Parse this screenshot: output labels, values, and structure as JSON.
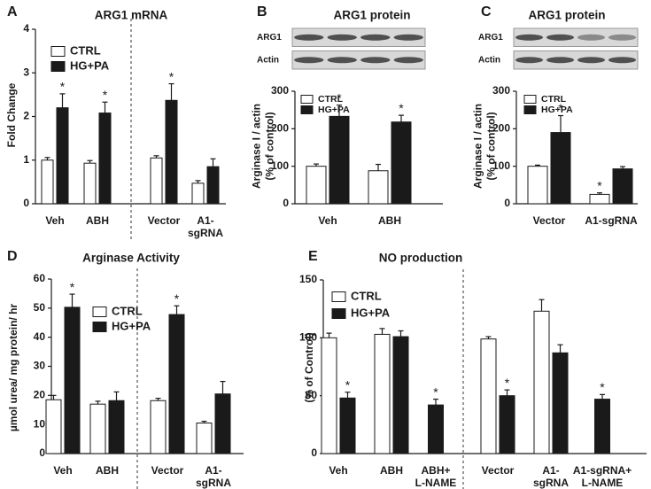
{
  "chart_data": [
    {
      "type": "bar",
      "panel": "A",
      "title": "ARG1 mRNA",
      "ylabel": [
        "Fold Change"
      ],
      "categories": [
        "Veh",
        "ABH",
        "Vector",
        [
          "A1-",
          "sgRNA"
        ]
      ],
      "series": [
        {
          "name": "CTRL",
          "color": "#ffffff",
          "values": [
            1.0,
            0.93,
            1.05,
            0.47
          ],
          "errors": [
            0.06,
            0.06,
            0.05,
            0.06
          ],
          "significance": [
            null,
            null,
            null,
            null
          ]
        },
        {
          "name": "HG+PA",
          "color": "#1a1a1a",
          "values": [
            2.2,
            2.08,
            2.37,
            0.85
          ],
          "errors": [
            0.32,
            0.25,
            0.38,
            0.18
          ],
          "significance": [
            "*",
            "*",
            "*",
            null
          ]
        }
      ],
      "ylim": [
        0,
        4
      ],
      "yticks": [
        0,
        1,
        2,
        3,
        4
      ]
    },
    {
      "type": "bar",
      "panel": "B",
      "title": "ARG1 protein",
      "blot_labels": [
        "ARG1",
        "Actin"
      ],
      "ylabel": [
        "Arginase I / actin",
        "(% of control)"
      ],
      "categories": [
        "Veh",
        "ABH"
      ],
      "series": [
        {
          "name": "CTRL",
          "color": "#ffffff",
          "values": [
            100,
            88
          ],
          "errors": [
            6,
            17
          ],
          "significance": [
            null,
            null
          ]
        },
        {
          "name": "HG+PA",
          "color": "#1a1a1a",
          "values": [
            233,
            218
          ],
          "errors": [
            30,
            18
          ],
          "significance": [
            "*",
            "*"
          ]
        }
      ],
      "ylim": [
        0,
        300
      ],
      "yticks": [
        0,
        100,
        200,
        300
      ]
    },
    {
      "type": "bar",
      "panel": "C",
      "title": "ARG1 protein",
      "blot_labels": [
        "ARG1",
        "Actin"
      ],
      "ylabel": [
        "Arginase I / actin",
        "(% of control)"
      ],
      "categories": [
        "Vector",
        "A1-sgRNA"
      ],
      "series": [
        {
          "name": "CTRL",
          "color": "#ffffff",
          "values": [
            100,
            25
          ],
          "errors": [
            3,
            4
          ],
          "significance": [
            null,
            "*"
          ]
        },
        {
          "name": "HG+PA",
          "color": "#1a1a1a",
          "values": [
            190,
            93
          ],
          "errors": [
            45,
            6
          ],
          "significance": [
            "*",
            null
          ]
        }
      ],
      "ylim": [
        0,
        300
      ],
      "yticks": [
        0,
        100,
        200,
        300
      ]
    },
    {
      "type": "bar",
      "panel": "D",
      "title": "Arginase Activity",
      "ylabel": [
        "µmol urea/ mg protein/ hr"
      ],
      "categories": [
        "Veh",
        "ABH",
        "Vector",
        [
          "A1-",
          "sgRNA"
        ]
      ],
      "series": [
        {
          "name": "CTRL",
          "color": "#ffffff",
          "values": [
            18.5,
            17,
            18.2,
            10.5
          ],
          "errors": [
            1.5,
            1,
            0.8,
            0.6
          ],
          "significance": [
            null,
            null,
            null,
            null
          ]
        },
        {
          "name": "HG+PA",
          "color": "#1a1a1a",
          "values": [
            50.3,
            18.2,
            47.8,
            20.5
          ],
          "errors": [
            4.5,
            3,
            3,
            4.3
          ],
          "significance": [
            "*",
            null,
            "*",
            null
          ]
        }
      ],
      "ylim": [
        0,
        60
      ],
      "yticks": [
        0,
        10,
        20,
        30,
        40,
        50,
        60
      ]
    },
    {
      "type": "bar",
      "panel": "E",
      "title": "NO production",
      "ylabel": [
        "(% of Control)"
      ],
      "categories": [
        "Veh",
        "ABH",
        [
          "ABH+",
          "L-NAME"
        ],
        "Vector",
        [
          "A1-",
          "sgRNA"
        ],
        [
          "A1-sgRNA+",
          "L-NAME"
        ]
      ],
      "series": [
        {
          "name": "CTRL",
          "color": "#ffffff",
          "values": [
            100,
            103,
            null,
            99,
            123,
            null
          ],
          "errors": [
            4,
            5,
            null,
            2,
            10,
            null
          ],
          "significance": [
            null,
            null,
            null,
            null,
            null,
            null
          ]
        },
        {
          "name": "HG+PA",
          "color": "#1a1a1a",
          "values": [
            48,
            101,
            42,
            50,
            87,
            47
          ],
          "errors": [
            5,
            5,
            5,
            5,
            7,
            4
          ],
          "significance": [
            "*",
            null,
            "*",
            "*",
            null,
            "*"
          ]
        }
      ],
      "ylim": [
        0,
        150
      ],
      "yticks": [
        0,
        50,
        100,
        150
      ]
    }
  ]
}
